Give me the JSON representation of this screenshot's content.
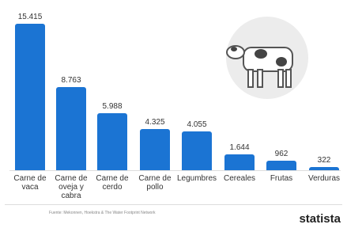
{
  "chart_data": {
    "type": "bar",
    "categories": [
      "Carne de vaca",
      "Carne de oveja y cabra",
      "Carne de cerdo",
      "Carne de pollo",
      "Legumbres",
      "Cereales",
      "Frutas",
      "Verduras"
    ],
    "values": [
      15415,
      8763,
      5988,
      4325,
      4055,
      1644,
      962,
      322
    ],
    "value_labels": [
      "15.415",
      "8.763",
      "5.988",
      "4.325",
      "4.055",
      "1.644",
      "962",
      "322"
    ],
    "color": "#1b74d3",
    "source": "Fuente: Mekonnen, Hoekstra & The Water Footprint Network",
    "brand": "statista"
  }
}
